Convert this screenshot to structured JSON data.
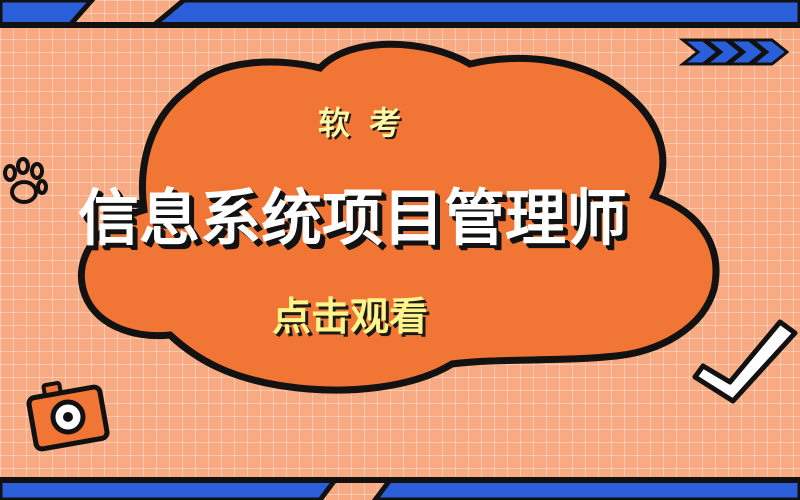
{
  "header": {
    "label": "软 考"
  },
  "hero": {
    "title": "信息系统项目管理师",
    "cta": "点击观看"
  },
  "icons": {
    "top_right": "double-chevron-icon",
    "left": "paw-print-icon",
    "bottom_left": "camera-icon",
    "right": "checkmark-icon"
  },
  "colors": {
    "background": "#f8aa82",
    "cloud": "#f17535",
    "cloud_stroke": "#111111",
    "accent_blue": "#2b5fd9",
    "title_text": "#ffffff",
    "highlight_text": "#fff58a"
  }
}
